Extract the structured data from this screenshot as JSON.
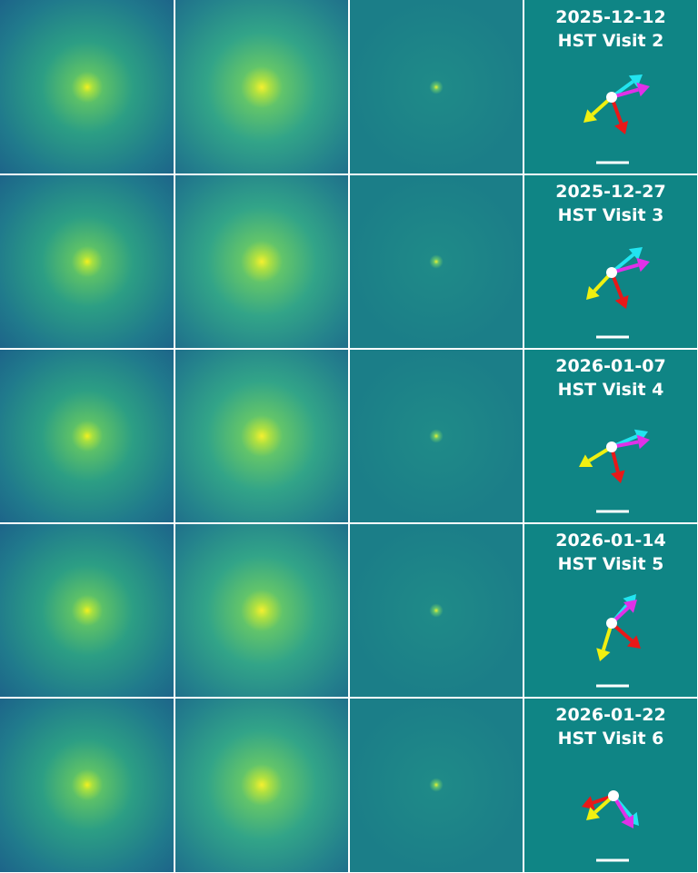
{
  "rows": [
    {
      "date": "2025-12-12",
      "visit": "HST Visit 2"
    },
    {
      "date": "2025-12-27",
      "visit": "HST Visit 3"
    },
    {
      "date": "2026-01-07",
      "visit": "HST Visit 4"
    },
    {
      "date": "2026-01-14",
      "visit": "HST Visit 5"
    },
    {
      "date": "2026-01-22",
      "visit": "HST Visit 6"
    }
  ]
}
